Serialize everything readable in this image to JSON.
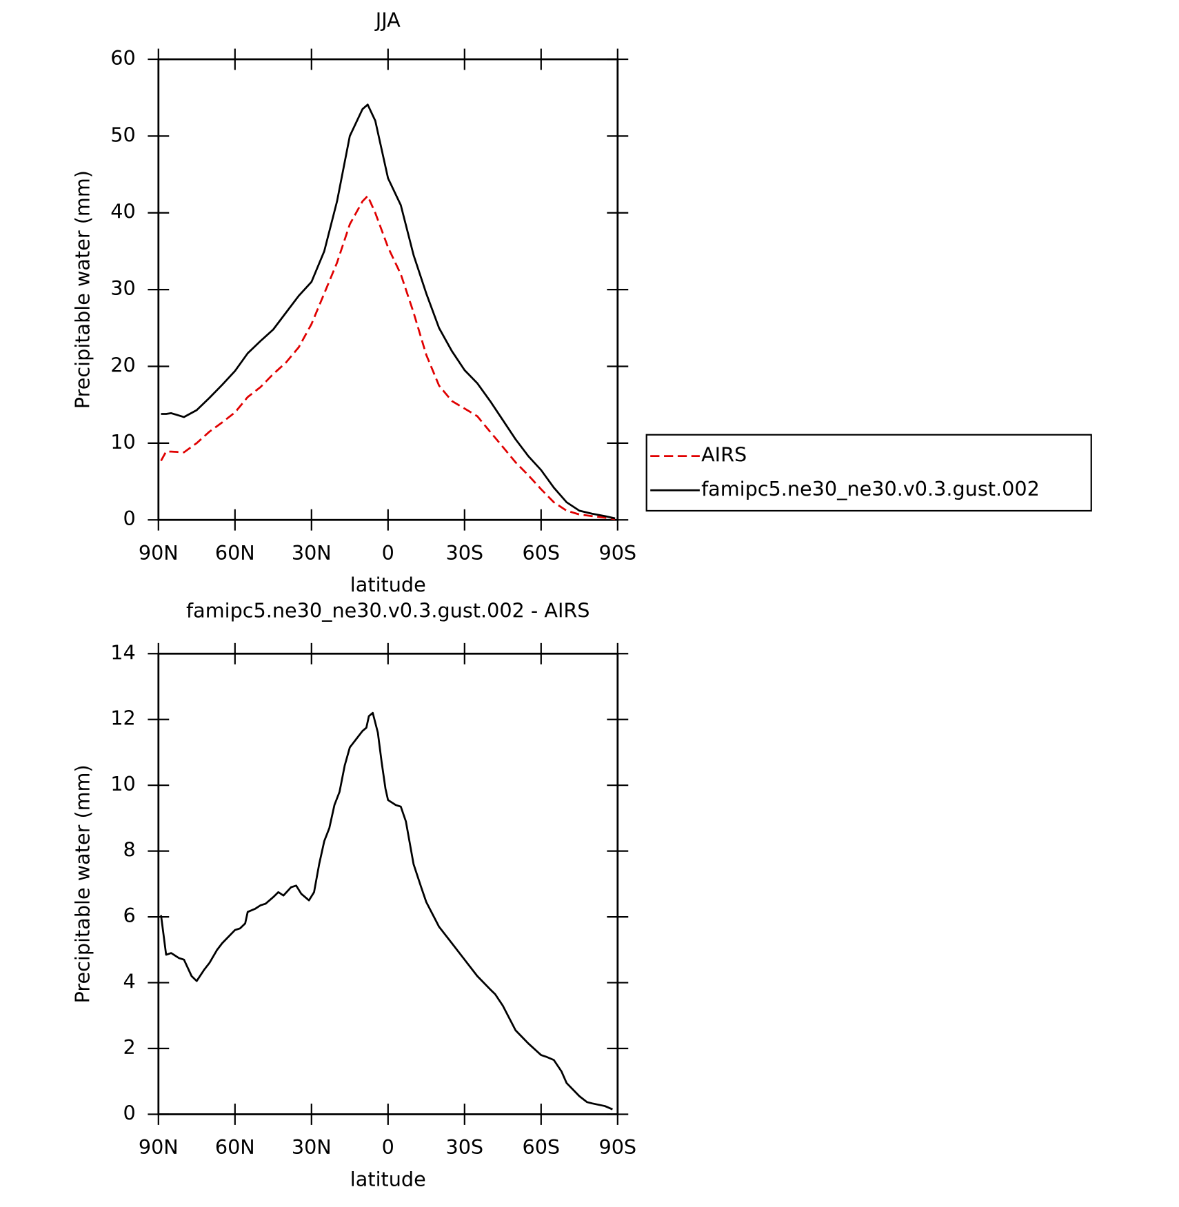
{
  "chart_data": [
    {
      "type": "line",
      "title": "JJA",
      "xlabel": "latitude",
      "ylabel": "Precipitable water (mm)",
      "x": [
        89,
        87,
        85,
        80,
        75,
        70,
        65,
        60,
        55,
        50,
        45,
        40,
        35,
        30,
        25,
        20,
        15,
        10,
        8,
        5,
        0,
        -5,
        -10,
        -15,
        -20,
        -25,
        -30,
        -35,
        -40,
        -45,
        -50,
        -55,
        -60,
        -65,
        -70,
        -75,
        -80,
        -85,
        -89
      ],
      "series": [
        {
          "name": "AIRS",
          "color": "#e00000",
          "dash": true,
          "values": [
            7.7,
            8.9,
            8.9,
            8.8,
            10.0,
            11.5,
            12.7,
            14.0,
            16.0,
            17.3,
            19.0,
            20.5,
            22.5,
            25.5,
            29.5,
            33.5,
            38.5,
            41.5,
            42.2,
            40.0,
            35.5,
            32.0,
            27.0,
            21.5,
            17.5,
            15.5,
            14.5,
            13.5,
            11.5,
            9.5,
            7.5,
            5.8,
            4.0,
            2.3,
            1.2,
            0.7,
            0.5,
            0.3,
            0.1
          ]
        },
        {
          "name": "famipc5.ne30_ne30.v0.3.gust.002",
          "color": "#000000",
          "dash": false,
          "values": [
            13.8,
            13.8,
            13.9,
            13.4,
            14.3,
            15.9,
            17.6,
            19.4,
            21.7,
            23.3,
            24.8,
            27.0,
            29.2,
            31.0,
            35.0,
            41.5,
            50.0,
            53.5,
            54.1,
            52.0,
            44.5,
            41.0,
            34.5,
            29.5,
            25.0,
            22.0,
            19.5,
            17.8,
            15.5,
            13.0,
            10.5,
            8.3,
            6.5,
            4.2,
            2.3,
            1.2,
            0.8,
            0.5,
            0.2
          ]
        }
      ],
      "xlim": [
        90,
        -90
      ],
      "xticks": [
        {
          "value": 90,
          "label": "90N"
        },
        {
          "value": 60,
          "label": "60N"
        },
        {
          "value": 30,
          "label": "30N"
        },
        0,
        {
          "value": -30,
          "label": "30S"
        },
        {
          "value": -60,
          "label": "60S"
        },
        {
          "value": -90,
          "label": "90S"
        }
      ],
      "ylim": [
        0,
        60
      ],
      "yticks": [
        0,
        10,
        20,
        30,
        40,
        50,
        60
      ],
      "legend": "right"
    },
    {
      "type": "line",
      "title": "famipc5.ne30_ne30.v0.3.gust.002 - AIRS",
      "xlabel": "latitude",
      "ylabel": "Precipitable water (mm)",
      "x": [
        89,
        87,
        85,
        82,
        80,
        77,
        75,
        72,
        70,
        67,
        65,
        60,
        58,
        56,
        55,
        52,
        50,
        48,
        45,
        43,
        41,
        38,
        36,
        34,
        31,
        29,
        27,
        25,
        23,
        21,
        19,
        17,
        15,
        12,
        10,
        8.5,
        7.5,
        6,
        4,
        2.5,
        1,
        0,
        -3,
        -5,
        -7,
        -10,
        -13,
        -15,
        -20,
        -25,
        -30,
        -35,
        -40,
        -42,
        -45,
        -50,
        -55,
        -60,
        -62,
        -65,
        -68,
        -70,
        -75,
        -78,
        -80,
        -85,
        -88
      ],
      "series": [
        {
          "color": "#000000",
          "dash": false,
          "values": [
            6.05,
            4.85,
            4.9,
            4.75,
            4.7,
            4.2,
            4.05,
            4.4,
            4.6,
            5.0,
            5.2,
            5.6,
            5.65,
            5.8,
            6.15,
            6.25,
            6.35,
            6.4,
            6.6,
            6.75,
            6.65,
            6.9,
            6.95,
            6.7,
            6.5,
            6.75,
            7.6,
            8.3,
            8.7,
            9.4,
            9.8,
            10.6,
            11.15,
            11.45,
            11.65,
            11.75,
            12.1,
            12.2,
            11.6,
            10.7,
            9.9,
            9.55,
            9.4,
            9.35,
            8.9,
            7.6,
            6.9,
            6.45,
            5.7,
            5.2,
            4.7,
            4.2,
            3.8,
            3.65,
            3.3,
            2.55,
            2.15,
            1.8,
            1.75,
            1.65,
            1.3,
            0.95,
            0.55,
            0.37,
            0.33,
            0.25,
            0.15
          ]
        }
      ],
      "xlim": [
        90,
        -90
      ],
      "xticks": [
        {
          "value": 90,
          "label": "90N"
        },
        {
          "value": 60,
          "label": "60N"
        },
        {
          "value": 30,
          "label": "30N"
        },
        0,
        {
          "value": -30,
          "label": "30S"
        },
        {
          "value": -60,
          "label": "60S"
        },
        {
          "value": -90,
          "label": "90S"
        }
      ],
      "ylim": [
        0,
        14
      ],
      "yticks": [
        0,
        2,
        4,
        6,
        8,
        10,
        12,
        14
      ]
    }
  ]
}
